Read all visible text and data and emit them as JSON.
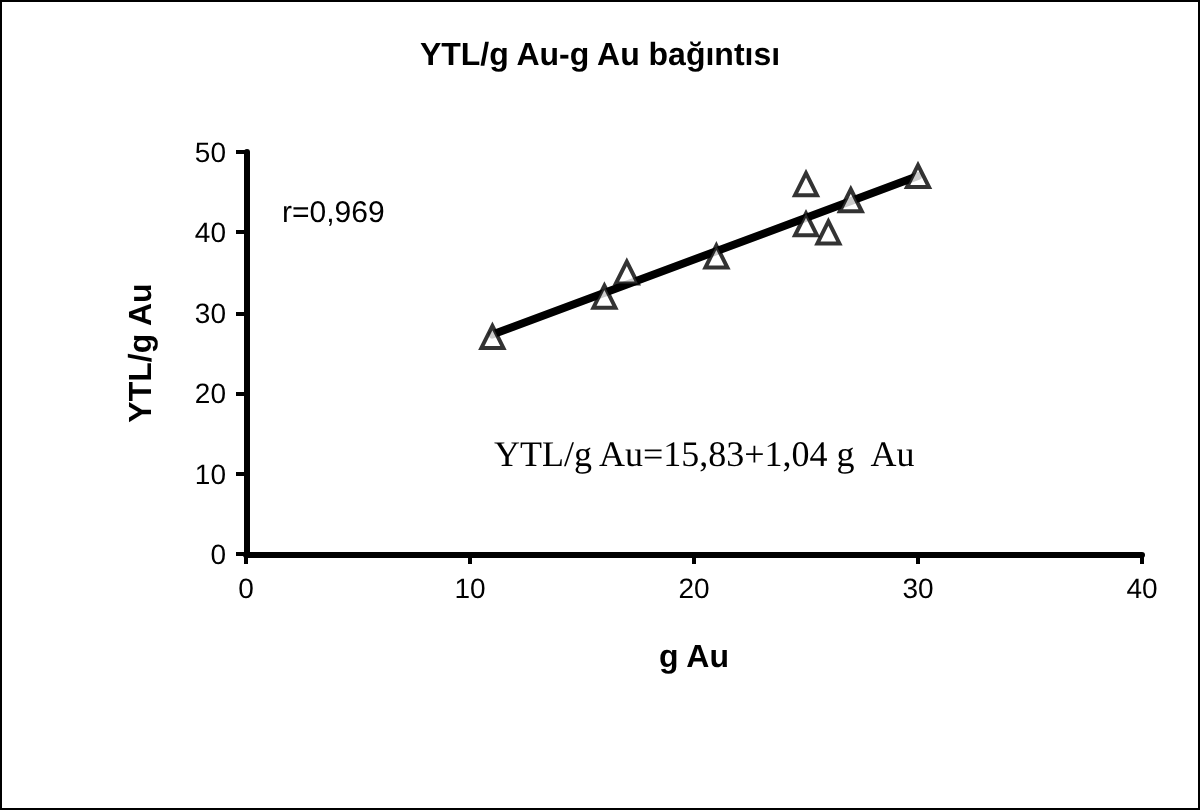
{
  "chart_data": {
    "type": "scatter",
    "title": "YTL/g Au-g Au bağıntısı",
    "xlabel": "g Au",
    "ylabel": "YTL/g Au",
    "x": [
      11,
      16,
      17,
      21,
      25,
      25,
      26,
      27,
      30
    ],
    "series": [
      {
        "type": "scatter",
        "color": "#000000",
        "marker": "triangle",
        "values": [
          27,
          32,
          35,
          37,
          46,
          41,
          40,
          44,
          47
        ]
      },
      {
        "type": "line",
        "color": "#000000",
        "marker": "none",
        "line_style": "solid",
        "x": [
          11,
          30
        ],
        "values": [
          27.3,
          47
        ]
      }
    ],
    "xlim": [
      0,
      40
    ],
    "xticks": [
      0,
      10,
      20,
      30,
      40
    ],
    "ylim": [
      0,
      50
    ],
    "yticks": [
      0,
      10,
      20,
      30,
      40,
      50
    ],
    "grid": false,
    "annotations": [
      "r=0,969",
      "YTL/g Au=15,83+1,04 g  Au"
    ]
  }
}
